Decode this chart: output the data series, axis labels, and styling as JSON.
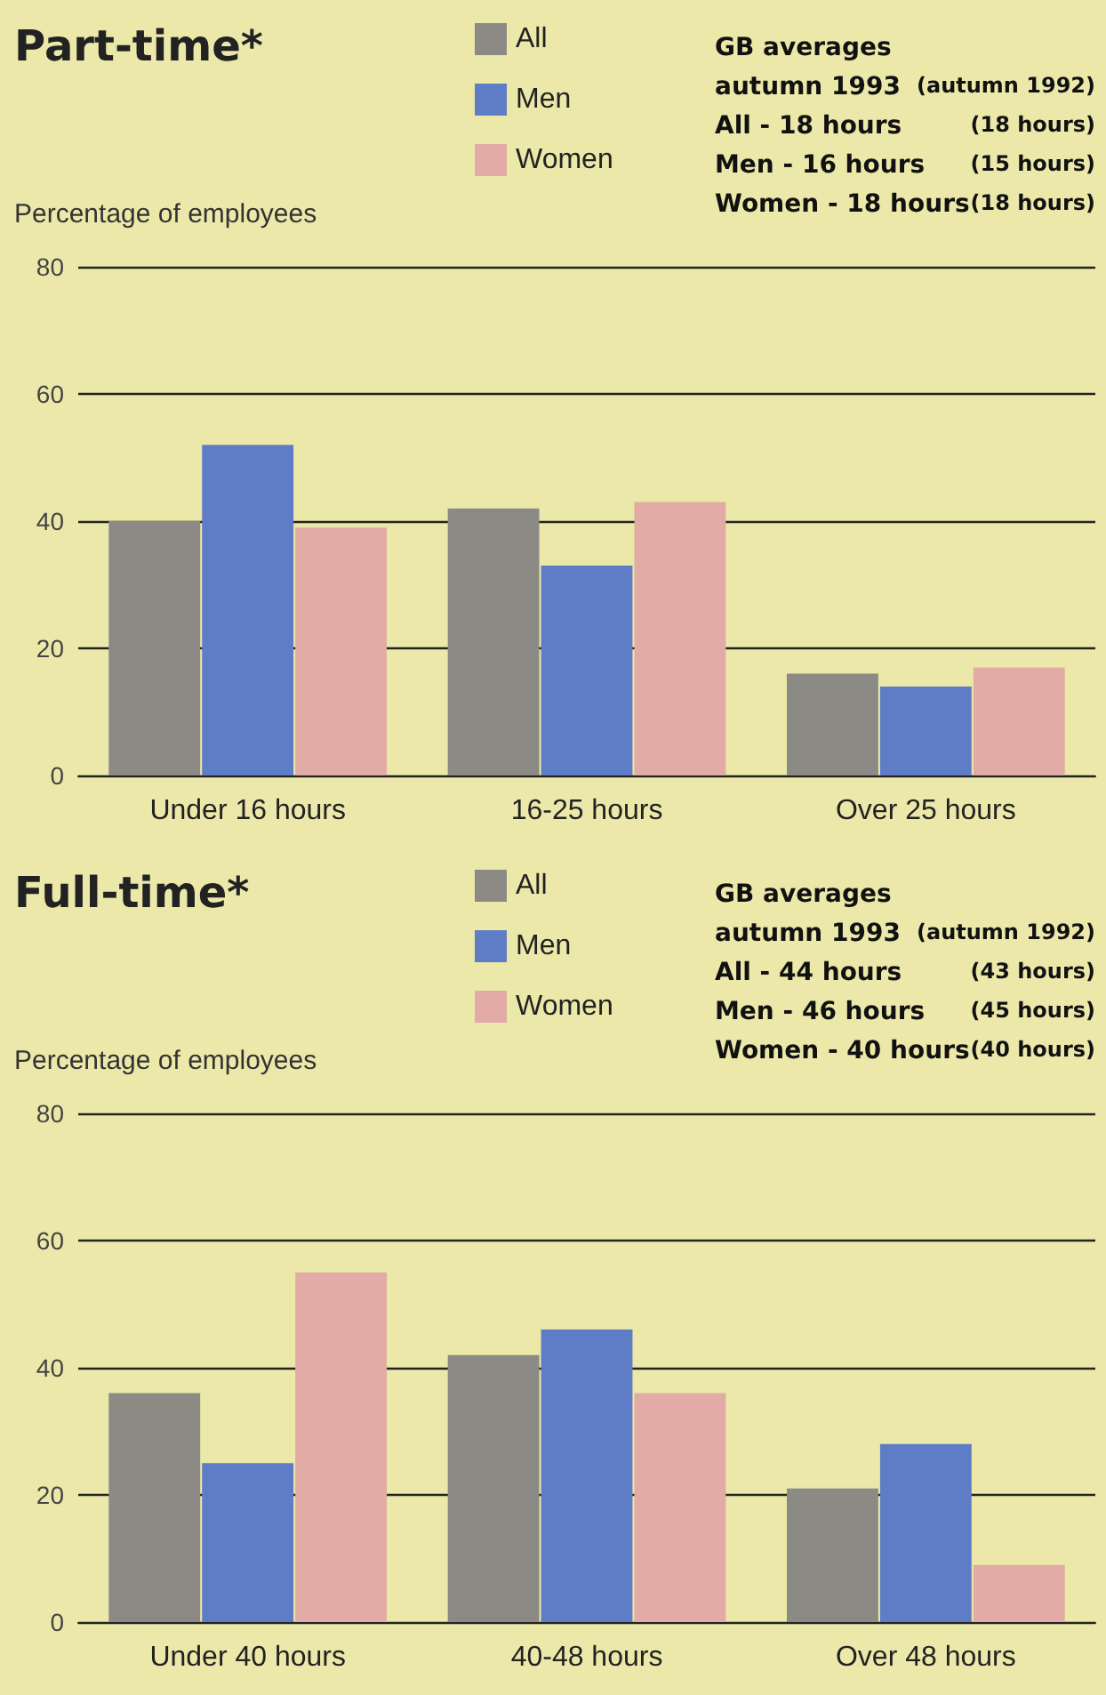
{
  "chart_data": [
    {
      "type": "bar",
      "title": "Part-time*",
      "ylabel": "Percentage of employees",
      "categories": [
        "Under 16 hours",
        "16-25 hours",
        "Over 25 hours"
      ],
      "series": [
        {
          "name": "All",
          "color": "#8c8a84",
          "values": [
            40,
            42,
            16
          ]
        },
        {
          "name": "Men",
          "color": "#5f7cc6",
          "values": [
            52,
            33,
            14
          ]
        },
        {
          "name": "Women",
          "color": "#e2aba6",
          "values": [
            39,
            43,
            17
          ]
        }
      ],
      "ylim": [
        0,
        80
      ],
      "yticks": [
        0,
        20,
        40,
        60,
        80
      ],
      "grid": "y",
      "legend": "top",
      "annotations": [
        "GB averages",
        "autumn 1993",
        "(autumn 1992)",
        "All - 18 hours",
        "(18 hours)",
        "Men - 16 hours",
        "(15 hours)",
        "Women - 18 hours",
        "(18 hours)"
      ]
    },
    {
      "type": "bar",
      "title": "Full-time*",
      "ylabel": "Percentage of employees",
      "categories": [
        "Under 40 hours",
        "40-48 hours",
        "Over 48 hours"
      ],
      "series": [
        {
          "name": "All",
          "color": "#8c8a84",
          "values": [
            36,
            42,
            21
          ]
        },
        {
          "name": "Men",
          "color": "#5f7cc6",
          "values": [
            25,
            46,
            28
          ]
        },
        {
          "name": "Women",
          "color": "#e2aba6",
          "values": [
            55,
            36,
            9
          ]
        }
      ],
      "ylim": [
        0,
        80
      ],
      "yticks": [
        0,
        20,
        40,
        60,
        80
      ],
      "grid": "y",
      "legend": "top",
      "annotations": [
        "GB averages",
        "autumn 1993",
        "(autumn 1992)",
        "All - 44 hours",
        "(43 hours)",
        "Men - 46 hours",
        "(45 hours)",
        "Women - 40 hours",
        "(40 hours)"
      ]
    }
  ]
}
